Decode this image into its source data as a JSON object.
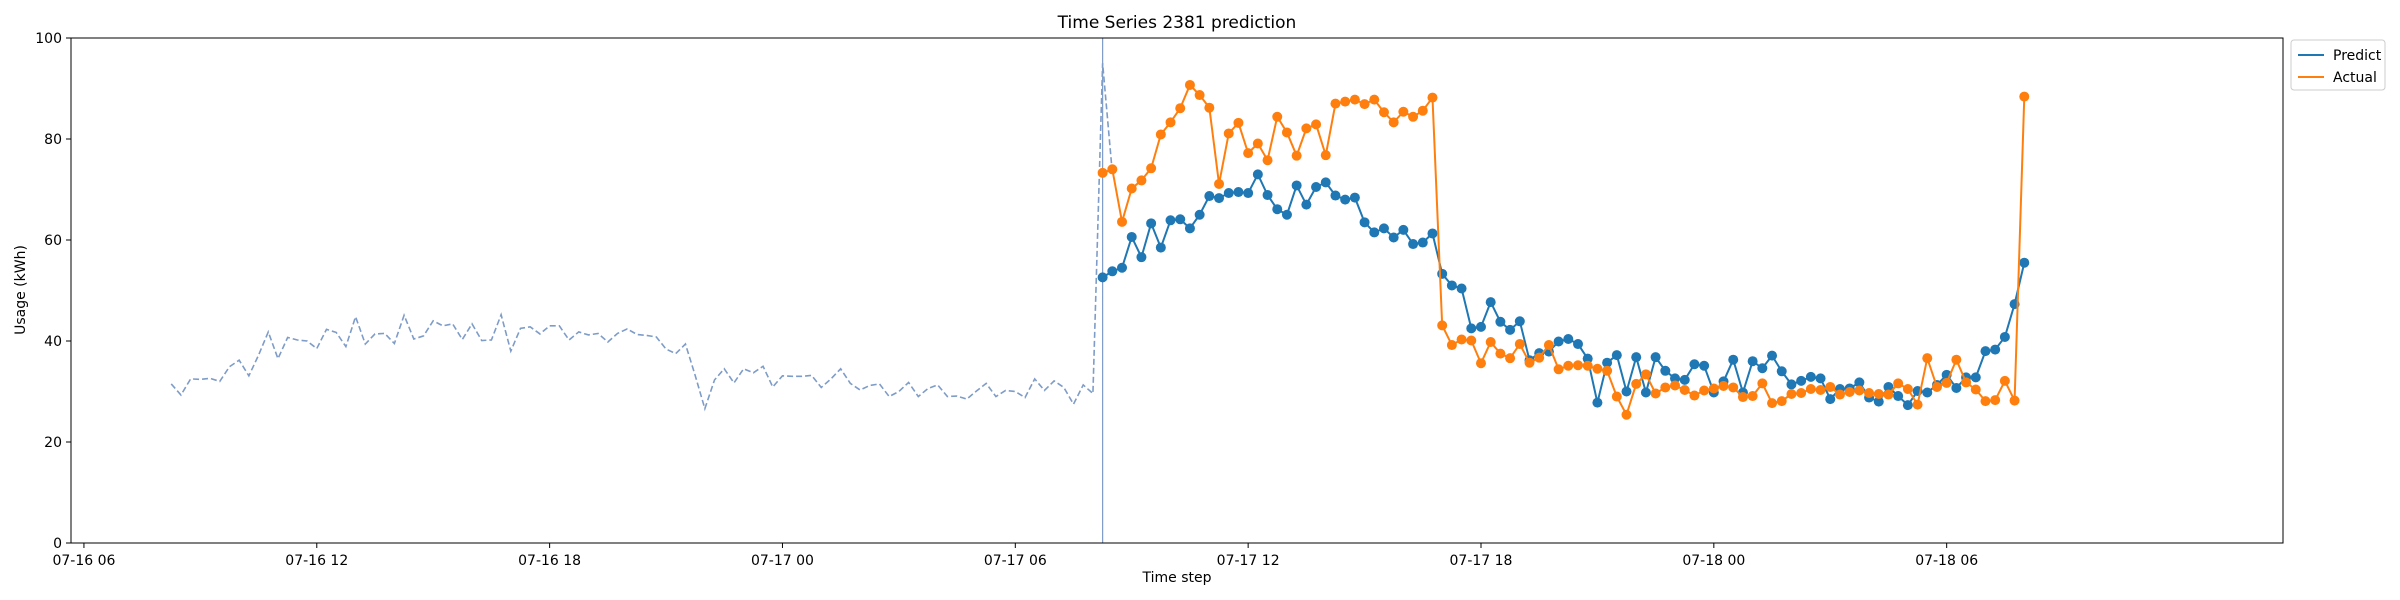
{
  "chart_data": {
    "type": "line",
    "title": "Time Series 2381 prediction",
    "xlabel": "Time step",
    "ylabel": "Usage (kWh)",
    "ylim": [
      0,
      100
    ],
    "xlim": [
      "2024-07-16T05:40",
      "2024-07-18T14:40"
    ],
    "yticks": [
      0,
      20,
      40,
      60,
      80,
      100
    ],
    "xticks": [
      {
        "t": "2024-07-16T06:00",
        "label": "07-16 06"
      },
      {
        "t": "2024-07-16T12:00",
        "label": "07-16 12"
      },
      {
        "t": "2024-07-16T18:00",
        "label": "07-16 18"
      },
      {
        "t": "2024-07-17T00:00",
        "label": "07-17 00"
      },
      {
        "t": "2024-07-17T06:00",
        "label": "07-17 06"
      },
      {
        "t": "2024-07-17T12:00",
        "label": "07-17 12"
      },
      {
        "t": "2024-07-17T18:00",
        "label": "07-17 18"
      },
      {
        "t": "2024-07-18T00:00",
        "label": "07-18 00"
      },
      {
        "t": "2024-07-18T06:00",
        "label": "07-18 06"
      }
    ],
    "grid": false,
    "legend_position": "top-right, outside axes",
    "forecast_start": "2024-07-17T08:15",
    "history": {
      "start": "2024-07-16T08:15",
      "interval_minutes": 15,
      "style": "dashed",
      "color": "#7e9cc8",
      "values": [
        31.5,
        29.3,
        32.5,
        32.4,
        32.6,
        32.0,
        34.9,
        36.2,
        33.1,
        37.2,
        41.8,
        36.5,
        40.7,
        40.2,
        40.0,
        38.5,
        42.3,
        41.7,
        38.9,
        44.8,
        39.4,
        41.4,
        41.5,
        39.5,
        45.1,
        40.4,
        41.0,
        44.0,
        43.0,
        43.4,
        40.3,
        43.4,
        40.1,
        40.2,
        45.2,
        38.0,
        42.5,
        42.8,
        41.4,
        43.0,
        43.0,
        40.2,
        41.8,
        41.2,
        41.5,
        39.8,
        41.5,
        42.4,
        41.3,
        41.1,
        40.8,
        38.4,
        37.5,
        39.4,
        33.2,
        26.6,
        32.3,
        34.5,
        31.7,
        34.5,
        33.7,
        35.0,
        30.9,
        33.1,
        33.0,
        33.0,
        33.2,
        30.8,
        32.5,
        34.5,
        31.6,
        30.3,
        31.2,
        31.5,
        29.0,
        30.0,
        31.8,
        29.0,
        30.6,
        31.3,
        29.0,
        29.1,
        28.5,
        30.1,
        31.6,
        29.0,
        30.2,
        30.0,
        28.8,
        32.5,
        30.2,
        32.1,
        30.8,
        27.5,
        31.3,
        29.6,
        95.0,
        73.3
      ]
    },
    "series": [
      {
        "name": "Predict",
        "color": "#1f77b4",
        "start": "2024-07-17T08:15",
        "interval_minutes": 15,
        "values": [
          52.6,
          53.8,
          54.5,
          60.6,
          56.6,
          63.3,
          58.5,
          63.9,
          64.1,
          62.3,
          65.0,
          68.7,
          68.3,
          69.3,
          69.5,
          69.3,
          73.0,
          68.9,
          66.1,
          65.0,
          70.8,
          67.0,
          70.5,
          71.4,
          68.8,
          68.0,
          68.4,
          63.5,
          61.5,
          62.3,
          60.5,
          62.0,
          59.2,
          59.5,
          61.3,
          53.3,
          51.0,
          50.4,
          42.5,
          42.8,
          47.7,
          43.8,
          42.2,
          43.9,
          36.2,
          37.6,
          37.9,
          39.9,
          40.4,
          39.4,
          36.5,
          27.8,
          35.7,
          37.2,
          30.0,
          36.8,
          29.8,
          36.8,
          34.1,
          32.6,
          32.3,
          35.4,
          35.1,
          29.8,
          32.0,
          36.3,
          29.8,
          36.0,
          34.6,
          37.1,
          34.0,
          31.4,
          32.1,
          32.9,
          32.6,
          28.5,
          30.5,
          30.6,
          31.8,
          28.8,
          28.0,
          30.9,
          29.1,
          27.3,
          30.1,
          29.8,
          31.3,
          33.3,
          30.7,
          32.8,
          32.8,
          38.0,
          38.3,
          40.8,
          47.3,
          55.5
        ]
      },
      {
        "name": "Actual",
        "color": "#ff7f0e",
        "start": "2024-07-17T08:15",
        "interval_minutes": 15,
        "values": [
          73.3,
          74.0,
          63.6,
          70.2,
          71.8,
          74.2,
          80.9,
          83.3,
          86.1,
          90.7,
          88.7,
          86.2,
          71.1,
          81.1,
          83.2,
          77.2,
          79.1,
          75.8,
          84.4,
          81.3,
          76.7,
          82.1,
          82.9,
          76.8,
          87.0,
          87.4,
          87.8,
          86.9,
          87.8,
          85.3,
          83.3,
          85.4,
          84.4,
          85.6,
          88.2,
          43.1,
          39.2,
          40.3,
          40.1,
          35.6,
          39.8,
          37.5,
          36.6,
          39.4,
          35.7,
          36.7,
          39.2,
          34.4,
          35.1,
          35.2,
          35.1,
          34.5,
          34.1,
          29.0,
          25.4,
          31.5,
          33.4,
          29.6,
          30.8,
          31.2,
          30.3,
          29.2,
          30.2,
          30.6,
          31.1,
          30.8,
          28.9,
          29.1,
          31.6,
          27.7,
          28.1,
          29.5,
          29.7,
          30.5,
          30.3,
          30.9,
          29.4,
          29.9,
          30.2,
          29.7,
          29.5,
          29.4,
          31.6,
          30.5,
          27.4,
          36.6,
          30.9,
          31.7,
          36.3,
          31.8,
          30.4,
          28.1,
          28.3,
          32.1,
          28.2,
          88.4
        ]
      }
    ]
  }
}
